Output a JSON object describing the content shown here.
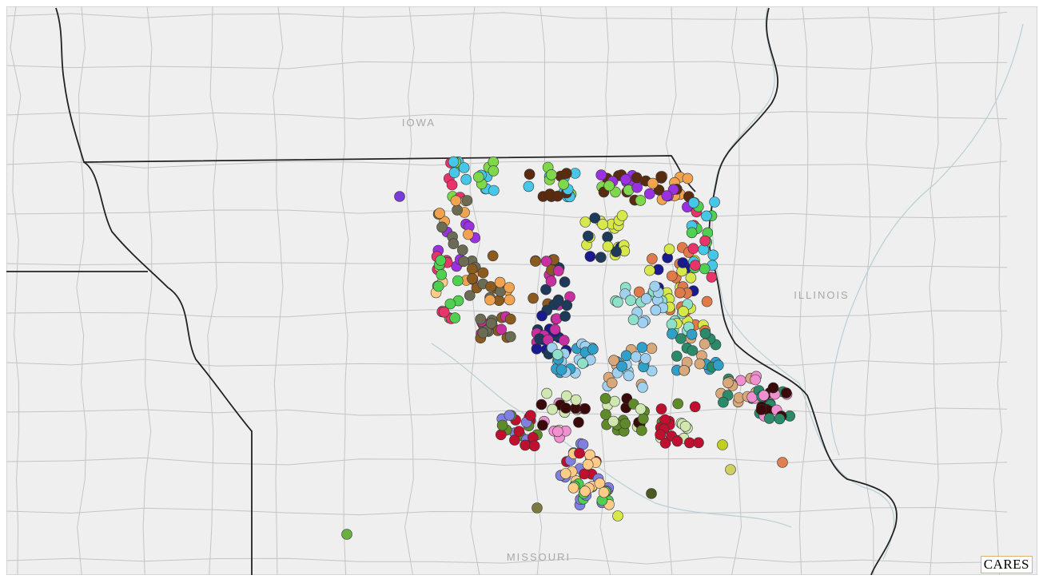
{
  "map": {
    "labels": [
      {
        "text": "IOWA"
      },
      {
        "text": "ILLINOIS"
      },
      {
        "text": "MISSOURI"
      }
    ],
    "logo": "CARES"
  }
}
